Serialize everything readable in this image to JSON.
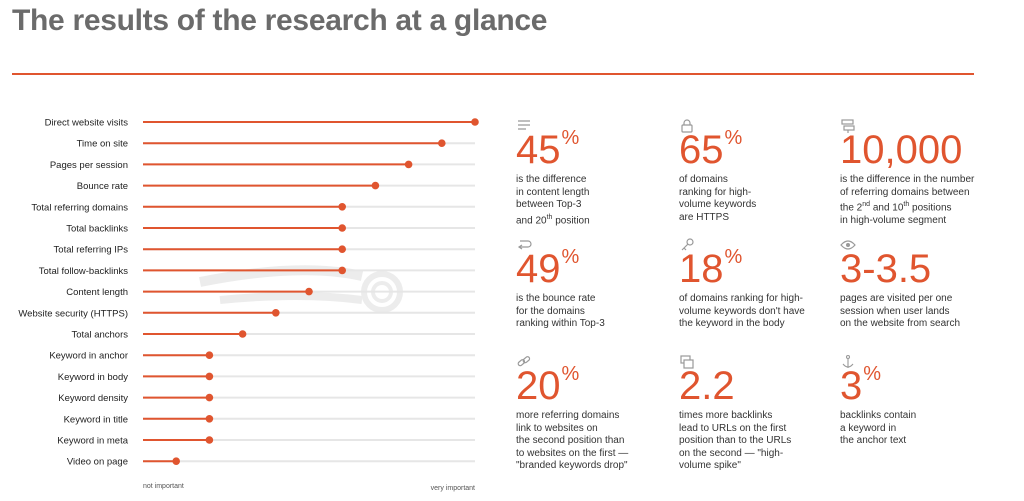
{
  "title": "The results of the research at a glance",
  "colors": {
    "accent": "#e0552f",
    "track": "#e6e6e6",
    "title": "#6b6b6b"
  },
  "chart_data": {
    "type": "lollipop",
    "categories": [
      "Direct website visits",
      "Time on site",
      "Pages per session",
      "Bounce rate",
      "Total referring domains",
      "Total backlinks",
      "Total referring IPs",
      "Total follow-backlinks",
      "Content length",
      "Website security (HTTPS)",
      "Total anchors",
      "Keyword in anchor",
      "Keyword in body",
      "Keyword density",
      "Keyword in title",
      "Keyword in meta",
      "Video on page"
    ],
    "values": [
      1.0,
      0.9,
      0.8,
      0.7,
      0.6,
      0.6,
      0.6,
      0.6,
      0.5,
      0.4,
      0.3,
      0.2,
      0.2,
      0.2,
      0.2,
      0.2,
      0.1
    ],
    "axis_left_label": "not important",
    "axis_right_label": "very important",
    "xlim": [
      0,
      1
    ]
  },
  "stats": [
    {
      "icon": "document-lines-icon",
      "number": "45",
      "suffix": "%",
      "desc_html": "is the difference\nin content length\nbetween Top-3\nand 20<sup>th</sup> position"
    },
    {
      "icon": "lock-icon",
      "number": "65",
      "suffix": "%",
      "desc_html": "of domains\nranking for high-\nvolume keywords\nare HTTPS"
    },
    {
      "icon": "signpost-icon",
      "number": "10,000",
      "suffix": "",
      "desc_html": "is the difference in the number\nof referring domains between\nthe 2<sup>nd</sup> and 10<sup>th</sup> positions\nin high-volume segment"
    },
    {
      "icon": "return-arrow-icon",
      "number": "49",
      "suffix": "%",
      "desc_html": "is the bounce rate\nfor the domains\nranking within Top-3"
    },
    {
      "icon": "key-icon",
      "number": "18",
      "suffix": "%",
      "desc_html": "of domains ranking for high-\nvolume keywords don't have\nthe keyword in the body"
    },
    {
      "icon": "eye-icon",
      "number": "3-3.5",
      "suffix": "",
      "desc_html": "pages are visited per one\nsession when user lands\non the website from search"
    },
    {
      "icon": "link-icon",
      "number": "20",
      "suffix": "%",
      "desc_html": "more referring domains\nlink to websites on\nthe second position than\nto websites on the first —\n\"branded keywords drop\""
    },
    {
      "icon": "stacked-pages-icon",
      "number": "2.2",
      "suffix": "",
      "desc_html": "times more backlinks\nlead to URLs on the first\nposition than to the URLs\non the second — \"high-\nvolume spike\""
    },
    {
      "icon": "anchor-icon",
      "number": "3",
      "suffix": "%",
      "desc_html": "backlinks contain\na keyword in\nthe anchor text"
    }
  ]
}
